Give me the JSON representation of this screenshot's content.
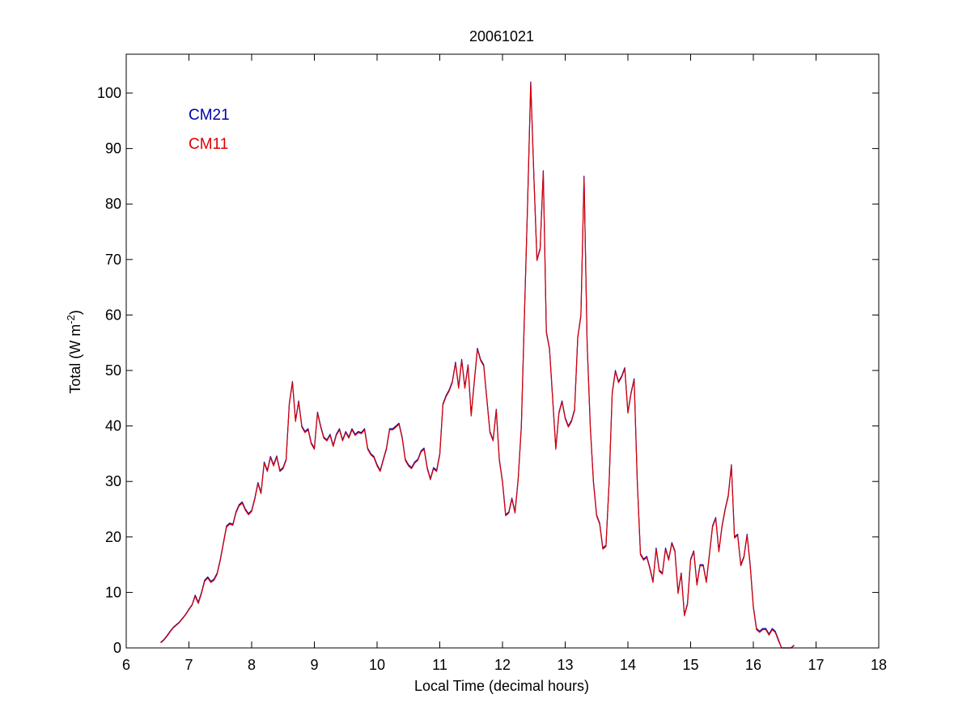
{
  "chart_data": {
    "type": "line",
    "title": "20061021",
    "xlabel": "Local Time (decimal hours)",
    "ylabel_base": "Total (W m",
    "ylabel_sup": "-2",
    "ylabel_end": ")",
    "xlim": [
      6,
      18
    ],
    "ylim": [
      0,
      107
    ],
    "xticks": [
      6,
      7,
      8,
      9,
      10,
      11,
      12,
      13,
      14,
      15,
      16,
      17,
      18
    ],
    "yticks": [
      0,
      10,
      20,
      30,
      40,
      50,
      60,
      70,
      80,
      90,
      100
    ],
    "grid": false,
    "legend_position": "top-left",
    "colors": {
      "CM21": "#0000aa",
      "CM11": "#dd0000"
    },
    "series": [
      {
        "name": "CM21",
        "x": [
          6.55,
          6.6,
          6.65,
          6.7,
          6.75,
          6.8,
          6.85,
          6.9,
          6.95,
          7.0,
          7.05,
          7.1,
          7.15,
          7.2,
          7.25,
          7.3,
          7.35,
          7.4,
          7.45,
          7.5,
          7.55,
          7.6,
          7.65,
          7.7,
          7.75,
          7.8,
          7.85,
          7.9,
          7.95,
          8.0,
          8.05,
          8.1,
          8.15,
          8.2,
          8.25,
          8.3,
          8.35,
          8.4,
          8.45,
          8.5,
          8.55,
          8.6,
          8.65,
          8.7,
          8.75,
          8.8,
          8.85,
          8.9,
          8.95,
          9.0,
          9.05,
          9.1,
          9.15,
          9.2,
          9.25,
          9.3,
          9.35,
          9.4,
          9.45,
          9.5,
          9.55,
          9.6,
          9.65,
          9.7,
          9.75,
          9.8,
          9.85,
          9.9,
          9.95,
          10.0,
          10.05,
          10.1,
          10.15,
          10.2,
          10.25,
          10.3,
          10.35,
          10.4,
          10.45,
          10.5,
          10.55,
          10.6,
          10.65,
          10.7,
          10.75,
          10.8,
          10.85,
          10.9,
          10.95,
          11.0,
          11.05,
          11.1,
          11.15,
          11.2,
          11.25,
          11.3,
          11.35,
          11.4,
          11.45,
          11.5,
          11.55,
          11.6,
          11.65,
          11.7,
          11.75,
          11.8,
          11.85,
          11.9,
          11.95,
          12.0,
          12.05,
          12.1,
          12.15,
          12.2,
          12.25,
          12.3,
          12.35,
          12.4,
          12.45,
          12.5,
          12.55,
          12.6,
          12.65,
          12.7,
          12.75,
          12.8,
          12.85,
          12.9,
          12.95,
          13.0,
          13.05,
          13.1,
          13.15,
          13.2,
          13.25,
          13.3,
          13.35,
          13.4,
          13.45,
          13.5,
          13.55,
          13.6,
          13.65,
          13.7,
          13.75,
          13.8,
          13.85,
          13.9,
          13.95,
          14.0,
          14.05,
          14.1,
          14.15,
          14.2,
          14.25,
          14.3,
          14.35,
          14.4,
          14.45,
          14.5,
          14.55,
          14.6,
          14.65,
          14.7,
          14.75,
          14.8,
          14.85,
          14.9,
          14.95,
          15.0,
          15.05,
          15.1,
          15.15,
          15.2,
          15.25,
          15.3,
          15.35,
          15.4,
          15.45,
          15.5,
          15.55,
          15.6,
          15.65,
          15.7,
          15.75,
          15.8,
          15.85,
          15.9,
          15.95,
          16.0,
          16.05,
          16.1,
          16.15,
          16.2,
          16.25,
          16.3,
          16.35,
          16.4,
          16.45,
          16.5,
          16.55,
          16.6,
          16.65
        ],
        "y": [
          1.0,
          1.5,
          2.2,
          3.0,
          3.7,
          4.2,
          4.7,
          5.4,
          6.1,
          7.0,
          7.8,
          9.5,
          8.2,
          10.0,
          12.2,
          12.8,
          12.0,
          12.4,
          13.5,
          16.0,
          19.0,
          22.0,
          22.5,
          22.3,
          24.5,
          25.8,
          26.3,
          25.0,
          24.2,
          24.8,
          27.0,
          29.8,
          28.0,
          33.5,
          32.0,
          34.5,
          33.0,
          34.6,
          32.0,
          32.5,
          34.0,
          44.0,
          48.0,
          41.0,
          44.5,
          40.0,
          39.0,
          39.5,
          37.0,
          36.0,
          42.5,
          40.0,
          38.0,
          37.5,
          38.5,
          36.5,
          38.5,
          39.5,
          37.5,
          39.0,
          38.0,
          39.5,
          38.5,
          39.0,
          38.8,
          39.5,
          36.0,
          35.0,
          34.5,
          33.0,
          32.0,
          34.0,
          36.0,
          39.5,
          39.5,
          40.0,
          40.5,
          38.0,
          34.0,
          33.0,
          32.5,
          33.5,
          34.0,
          35.5,
          36.0,
          32.5,
          30.5,
          32.5,
          32.0,
          35.0,
          44.0,
          45.5,
          46.5,
          48.0,
          51.5,
          47.0,
          52.0,
          47.0,
          51.0,
          42.0,
          48.0,
          54.0,
          52.0,
          51.0,
          45.0,
          39.0,
          37.5,
          43.0,
          34.0,
          30.0,
          24.0,
          24.5,
          27.0,
          24.5,
          30.5,
          40.0,
          60.0,
          80.0,
          102.0,
          85.0,
          70.0,
          72.0,
          86.0,
          57.0,
          54.0,
          45.0,
          36.0,
          42.5,
          44.5,
          41.5,
          40.0,
          41.0,
          43.0,
          56.0,
          60.0,
          85.0,
          55.0,
          40.0,
          30.0,
          24.0,
          22.5,
          18.0,
          18.5,
          30.0,
          46.0,
          50.0,
          48.0,
          49.0,
          50.5,
          42.5,
          46.0,
          48.5,
          30.0,
          17.0,
          16.0,
          16.5,
          14.5,
          12.0,
          18.0,
          14.0,
          13.5,
          18.0,
          16.0,
          19.0,
          17.5,
          10.0,
          13.5,
          6.0,
          8.0,
          16.0,
          17.5,
          11.5,
          15.0,
          15.0,
          12.0,
          17.0,
          22.0,
          23.5,
          17.5,
          22.0,
          25.0,
          27.5,
          33.0,
          20.0,
          20.5,
          15.0,
          16.5,
          20.5,
          15.0,
          7.5,
          3.5,
          3.0,
          3.5,
          3.5,
          2.5,
          3.5,
          3.0,
          1.5,
          0.0,
          0.0,
          0.0,
          0.0,
          0.5
        ]
      },
      {
        "name": "CM11",
        "x": [
          6.55,
          6.6,
          6.65,
          6.7,
          6.75,
          6.8,
          6.85,
          6.9,
          6.95,
          7.0,
          7.05,
          7.1,
          7.15,
          7.2,
          7.25,
          7.3,
          7.35,
          7.4,
          7.45,
          7.5,
          7.55,
          7.6,
          7.65,
          7.7,
          7.75,
          7.8,
          7.85,
          7.9,
          7.95,
          8.0,
          8.05,
          8.1,
          8.15,
          8.2,
          8.25,
          8.3,
          8.35,
          8.4,
          8.45,
          8.5,
          8.55,
          8.6,
          8.65,
          8.7,
          8.75,
          8.8,
          8.85,
          8.9,
          8.95,
          9.0,
          9.05,
          9.1,
          9.15,
          9.2,
          9.25,
          9.3,
          9.35,
          9.4,
          9.45,
          9.5,
          9.55,
          9.6,
          9.65,
          9.7,
          9.75,
          9.8,
          9.85,
          9.9,
          9.95,
          10.0,
          10.05,
          10.1,
          10.15,
          10.2,
          10.25,
          10.3,
          10.35,
          10.4,
          10.45,
          10.5,
          10.55,
          10.6,
          10.65,
          10.7,
          10.75,
          10.8,
          10.85,
          10.9,
          10.95,
          11.0,
          11.05,
          11.1,
          11.15,
          11.2,
          11.25,
          11.3,
          11.35,
          11.4,
          11.45,
          11.5,
          11.55,
          11.6,
          11.65,
          11.7,
          11.75,
          11.8,
          11.85,
          11.9,
          11.95,
          12.0,
          12.05,
          12.1,
          12.15,
          12.2,
          12.25,
          12.3,
          12.35,
          12.4,
          12.45,
          12.5,
          12.55,
          12.6,
          12.65,
          12.7,
          12.75,
          12.8,
          12.85,
          12.9,
          12.95,
          13.0,
          13.05,
          13.1,
          13.15,
          13.2,
          13.25,
          13.3,
          13.35,
          13.4,
          13.45,
          13.5,
          13.55,
          13.6,
          13.65,
          13.7,
          13.75,
          13.8,
          13.85,
          13.9,
          13.95,
          14.0,
          14.05,
          14.1,
          14.15,
          14.2,
          14.25,
          14.3,
          14.35,
          14.4,
          14.45,
          14.5,
          14.55,
          14.6,
          14.65,
          14.7,
          14.75,
          14.8,
          14.85,
          14.9,
          14.95,
          15.0,
          15.05,
          15.1,
          15.15,
          15.2,
          15.25,
          15.3,
          15.35,
          15.4,
          15.45,
          15.5,
          15.55,
          15.6,
          15.65,
          15.7,
          15.75,
          15.8,
          15.85,
          15.9,
          15.95,
          16.0,
          16.05,
          16.1,
          16.15,
          16.2,
          16.25,
          16.3,
          16.35,
          16.4,
          16.45,
          16.5,
          16.55,
          16.6,
          16.65
        ],
        "y": [
          0.9,
          1.4,
          2.1,
          2.9,
          3.6,
          4.1,
          4.6,
          5.3,
          6.0,
          6.9,
          7.7,
          9.3,
          8.0,
          9.8,
          12.0,
          12.6,
          11.8,
          12.2,
          13.3,
          15.8,
          18.8,
          21.8,
          22.3,
          22.1,
          24.3,
          25.6,
          26.1,
          24.8,
          24.0,
          24.6,
          26.8,
          29.6,
          27.8,
          33.3,
          31.8,
          34.3,
          32.8,
          34.4,
          31.8,
          32.3,
          33.8,
          43.8,
          47.8,
          40.8,
          44.3,
          39.8,
          38.8,
          39.3,
          36.8,
          35.8,
          42.3,
          39.8,
          37.8,
          37.3,
          38.3,
          36.3,
          38.3,
          39.3,
          37.3,
          38.8,
          37.8,
          39.3,
          38.3,
          38.8,
          38.6,
          39.3,
          35.8,
          34.8,
          34.3,
          32.8,
          31.8,
          33.8,
          35.8,
          39.3,
          39.3,
          39.8,
          40.3,
          37.8,
          33.8,
          32.8,
          32.3,
          33.3,
          33.8,
          35.3,
          35.8,
          32.3,
          30.3,
          32.3,
          31.8,
          34.8,
          43.8,
          45.3,
          46.3,
          47.8,
          51.3,
          46.8,
          51.8,
          46.8,
          50.8,
          41.8,
          47.8,
          53.8,
          51.8,
          50.8,
          44.8,
          38.8,
          37.3,
          42.8,
          33.8,
          29.8,
          23.8,
          24.3,
          26.8,
          24.3,
          30.3,
          39.8,
          59.8,
          79.8,
          101.8,
          84.8,
          69.8,
          71.8,
          85.8,
          56.8,
          53.8,
          44.8,
          35.8,
          42.3,
          44.3,
          41.3,
          39.8,
          40.8,
          42.8,
          55.8,
          59.8,
          84.8,
          54.8,
          39.8,
          29.8,
          23.8,
          22.3,
          17.8,
          18.3,
          29.8,
          45.8,
          49.8,
          47.8,
          48.8,
          50.3,
          42.3,
          45.8,
          48.3,
          29.8,
          16.8,
          15.8,
          16.3,
          14.3,
          11.8,
          17.8,
          13.8,
          13.3,
          17.8,
          15.8,
          18.8,
          17.3,
          9.8,
          13.3,
          5.8,
          7.8,
          15.8,
          17.3,
          11.3,
          14.8,
          14.8,
          11.8,
          16.8,
          21.8,
          23.3,
          17.3,
          21.8,
          24.8,
          27.3,
          32.8,
          19.8,
          20.3,
          14.8,
          16.3,
          20.3,
          14.8,
          7.3,
          3.3,
          2.8,
          3.3,
          3.3,
          2.3,
          3.3,
          2.8,
          1.3,
          0.0,
          0.0,
          0.0,
          0.0,
          0.4
        ]
      }
    ]
  }
}
